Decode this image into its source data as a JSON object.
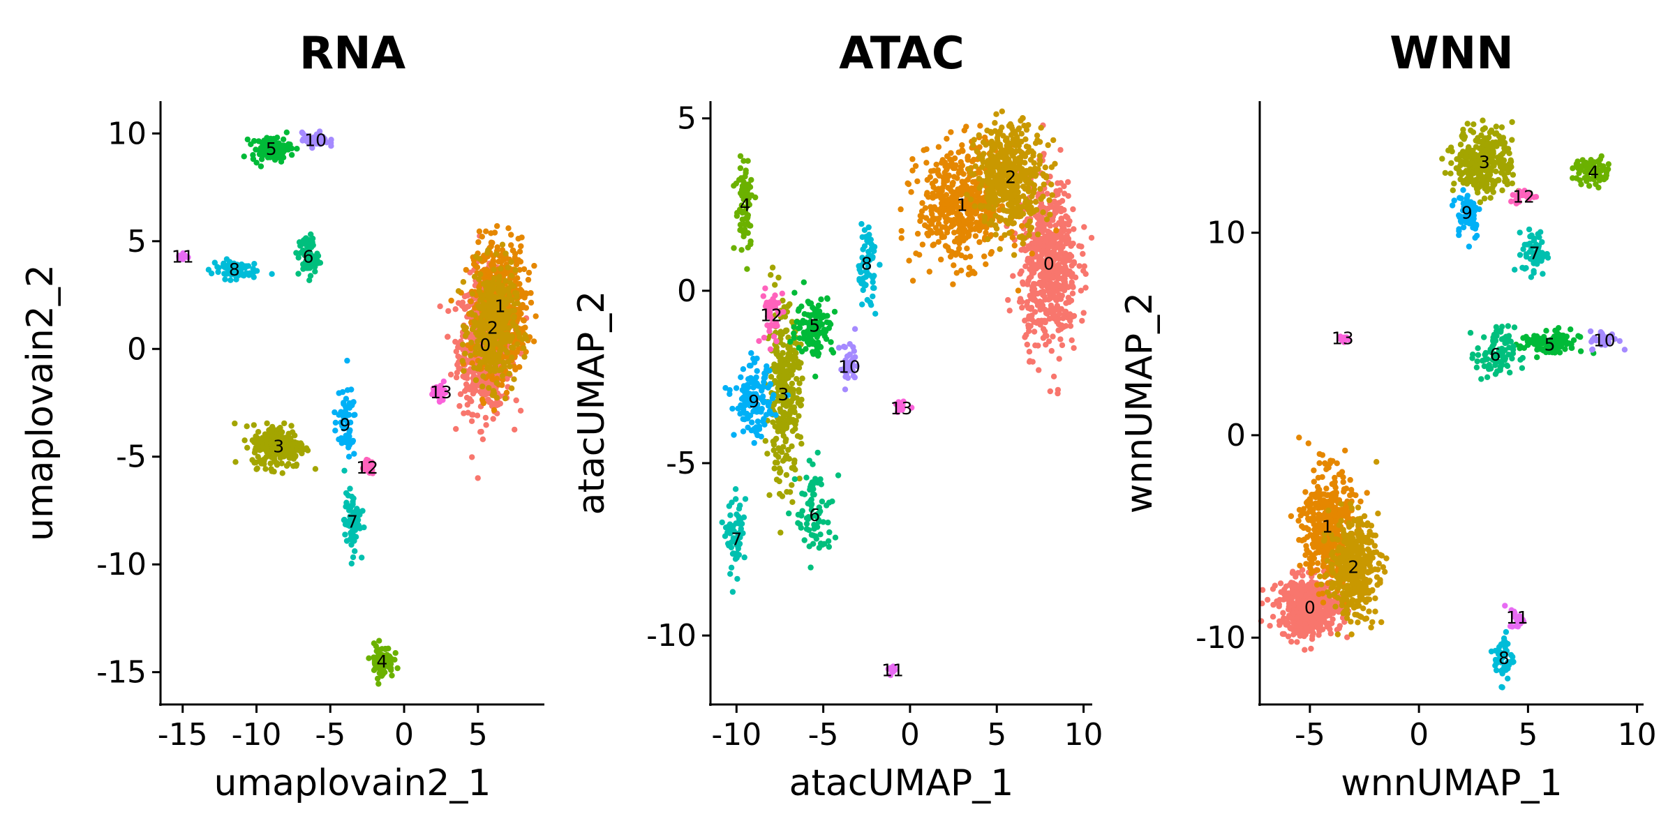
{
  "cluster_colors": {
    "0": "#F8766D",
    "1": "#E58700",
    "2": "#C99800",
    "3": "#A3A500",
    "4": "#6BB100",
    "5": "#00BA38",
    "6": "#00BF7D",
    "7": "#00C0AF",
    "8": "#00BCD8",
    "9": "#00B0F6",
    "10": "#A58AFF",
    "11": "#E76BF3",
    "12": "#FF62BC",
    "13": "#FA62DB"
  },
  "chart_data": [
    {
      "type": "scatter",
      "title": "RNA",
      "xlabel": "umaplovain2_1",
      "ylabel": "umaplovain2_2",
      "xlim": [
        -16.5,
        9.5
      ],
      "ylim": [
        -16.5,
        11.5
      ],
      "xticks": [
        -15,
        -10,
        -5,
        0,
        5
      ],
      "xtick_labels": [
        "-15",
        "-10",
        "-5",
        "0",
        "5"
      ],
      "yticks": [
        10,
        5,
        0,
        -5,
        -10,
        -15
      ],
      "ytick_labels": [
        "10",
        "5",
        "0",
        "-5",
        "-10",
        "-15"
      ],
      "clusters": [
        {
          "label": "0",
          "x": 5.5,
          "y": 0.2
        },
        {
          "label": "1",
          "x": 6.5,
          "y": 2.0
        },
        {
          "label": "2",
          "x": 6.0,
          "y": 1.0
        },
        {
          "label": "3",
          "x": -8.5,
          "y": -4.5
        },
        {
          "label": "4",
          "x": -1.5,
          "y": -14.5
        },
        {
          "label": "5",
          "x": -9.0,
          "y": 9.3
        },
        {
          "label": "6",
          "x": -6.5,
          "y": 4.3
        },
        {
          "label": "7",
          "x": -3.5,
          "y": -8.0
        },
        {
          "label": "8",
          "x": -11.5,
          "y": 3.7
        },
        {
          "label": "9",
          "x": -4.0,
          "y": -3.5
        },
        {
          "label": "10",
          "x": -6.0,
          "y": 9.7
        },
        {
          "label": "11",
          "x": -15.0,
          "y": 4.3
        },
        {
          "label": "12",
          "x": -2.5,
          "y": -5.5
        },
        {
          "label": "13",
          "x": 2.5,
          "y": -2.0
        }
      ]
    },
    {
      "type": "scatter",
      "title": "ATAC",
      "xlabel": "atacUMAP_1",
      "ylabel": "atacUMAP_2",
      "xlim": [
        -11.5,
        10.5
      ],
      "ylim": [
        -12.0,
        5.5
      ],
      "xticks": [
        -10,
        -5,
        0,
        5,
        10
      ],
      "xtick_labels": [
        "-10",
        "-5",
        "0",
        "5",
        "10"
      ],
      "yticks": [
        5,
        0,
        -5,
        -10
      ],
      "ytick_labels": [
        "5",
        "0",
        "-5",
        "-10"
      ],
      "clusters": [
        {
          "label": "0",
          "x": 8.0,
          "y": 0.8
        },
        {
          "label": "1",
          "x": 3.0,
          "y": 2.5
        },
        {
          "label": "2",
          "x": 5.8,
          "y": 3.3
        },
        {
          "label": "3",
          "x": -7.3,
          "y": -3.0
        },
        {
          "label": "4",
          "x": -9.5,
          "y": 2.5
        },
        {
          "label": "5",
          "x": -5.5,
          "y": -1.0
        },
        {
          "label": "6",
          "x": -5.5,
          "y": -6.5
        },
        {
          "label": "7",
          "x": -10.0,
          "y": -7.2
        },
        {
          "label": "8",
          "x": -2.5,
          "y": 0.8
        },
        {
          "label": "9",
          "x": -9.0,
          "y": -3.2
        },
        {
          "label": "10",
          "x": -3.5,
          "y": -2.2
        },
        {
          "label": "11",
          "x": -1.0,
          "y": -11.0
        },
        {
          "label": "12",
          "x": -8.0,
          "y": -0.7
        },
        {
          "label": "13",
          "x": -0.5,
          "y": -3.4
        }
      ]
    },
    {
      "type": "scatter",
      "title": "WNN",
      "xlabel": "wnnUMAP_1",
      "ylabel": "wnnUMAP_2",
      "xlim": [
        -7.3,
        10.3
      ],
      "ylim": [
        -13.3,
        16.5
      ],
      "xticks": [
        -5,
        0,
        5,
        10
      ],
      "xtick_labels": [
        "-5",
        "0",
        "5",
        "10"
      ],
      "yticks": [
        10,
        0,
        -10
      ],
      "ytick_labels": [
        "10",
        "0",
        "-10"
      ],
      "clusters": [
        {
          "label": "0",
          "x": -5.0,
          "y": -8.5
        },
        {
          "label": "1",
          "x": -4.2,
          "y": -4.5
        },
        {
          "label": "2",
          "x": -3.0,
          "y": -6.5
        },
        {
          "label": "3",
          "x": 3.0,
          "y": 13.5
        },
        {
          "label": "4",
          "x": 8.0,
          "y": 13.0
        },
        {
          "label": "5",
          "x": 6.0,
          "y": 4.5
        },
        {
          "label": "6",
          "x": 3.5,
          "y": 4.0
        },
        {
          "label": "7",
          "x": 5.3,
          "y": 9.0
        },
        {
          "label": "8",
          "x": 3.9,
          "y": -11.0
        },
        {
          "label": "9",
          "x": 2.2,
          "y": 11.0
        },
        {
          "label": "10",
          "x": 8.5,
          "y": 4.7
        },
        {
          "label": "11",
          "x": 4.5,
          "y": -9.0
        },
        {
          "label": "12",
          "x": 4.8,
          "y": 11.8
        },
        {
          "label": "13",
          "x": -3.5,
          "y": 4.8
        }
      ]
    }
  ]
}
